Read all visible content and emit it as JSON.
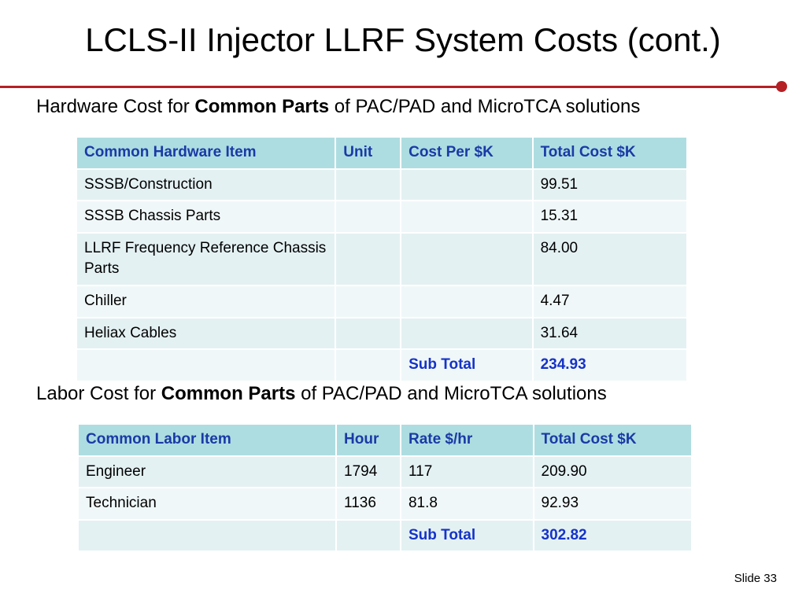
{
  "slide": {
    "title": "LCLS-II Injector LLRF System Costs (cont.)",
    "footer": "Slide 33"
  },
  "hardware": {
    "heading_prefix": "Hardware Cost for ",
    "heading_bold": "Common Parts",
    "heading_suffix": " of PAC/PAD and MicroTCA solutions",
    "columns": [
      "Common Hardware Item",
      "Unit",
      "Cost Per $K",
      "Total Cost $K"
    ],
    "rows": [
      [
        "SSSB/Construction",
        "",
        "",
        "99.51"
      ],
      [
        "SSSB Chassis Parts",
        "",
        "",
        "15.31"
      ],
      [
        "LLRF Frequency Reference Chassis Parts",
        "",
        "",
        "84.00"
      ],
      [
        "Chiller",
        "",
        "",
        "4.47"
      ],
      [
        "Heliax Cables",
        "",
        "",
        "31.64"
      ]
    ],
    "subtotal_label": "Sub Total",
    "subtotal_value": "234.93"
  },
  "labor": {
    "heading_prefix": "Labor Cost for ",
    "heading_bold": "Common Parts",
    "heading_suffix": " of PAC/PAD and MicroTCA solutions",
    "columns": [
      "Common Labor Item",
      "Hour",
      "Rate $/hr",
      "Total Cost $K"
    ],
    "rows": [
      [
        "Engineer",
        "1794",
        "117",
        "209.90"
      ],
      [
        "Technician",
        "1136",
        "81.8",
        "92.93"
      ]
    ],
    "subtotal_label": "Sub Total",
    "subtotal_value": "302.82"
  }
}
